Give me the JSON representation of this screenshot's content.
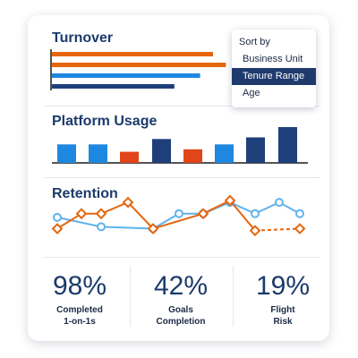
{
  "colors": {
    "navy": "#1f3f7a",
    "orange": "#e5660f",
    "blue": "#1e88e0",
    "red_orange": "#e0461a",
    "light_blue": "#5fb3ec",
    "title": "#1b3a6b"
  },
  "turnover": {
    "title": "Turnover",
    "chart_data": {
      "type": "bar",
      "orientation": "horizontal",
      "values": [
        0.75,
        0.81,
        0.69,
        0.57
      ],
      "series_colors": [
        "orange",
        "orange",
        "blue",
        "navy"
      ]
    }
  },
  "sort_menu": {
    "title": "Sort by",
    "options": [
      "Business Unit",
      "Tenure Range",
      "Age"
    ],
    "selected_index": 1
  },
  "platform_usage": {
    "title": "Platform Usage",
    "chart_data": {
      "type": "bar",
      "values": [
        0.45,
        0.45,
        0.27,
        0.58,
        0.33,
        0.45,
        0.62,
        0.87
      ],
      "series_colors": [
        "blue",
        "blue",
        "red_orange",
        "navy",
        "red_orange",
        "blue",
        "navy",
        "navy"
      ]
    }
  },
  "retention": {
    "title": "Retention",
    "chart_data": {
      "type": "line",
      "series": [
        {
          "color": "light_blue",
          "values": [
            0.55,
            0.3,
            0.25,
            0.65,
            0.65,
            0.95,
            0.65,
            0.95,
            0.65
          ]
        },
        {
          "color": "orange",
          "values": [
            0.25,
            0.65,
            0.65,
            0.95,
            0.25,
            0.65,
            1.0,
            0.2,
            0.25
          ],
          "dashed_last_segment": true
        }
      ]
    }
  },
  "stats": [
    {
      "value": "98%",
      "label": "Completed\n1-on-1s"
    },
    {
      "value": "42%",
      "label": "Goals\nCompletion"
    },
    {
      "value": "19%",
      "label": "Flight\nRisk"
    }
  ]
}
